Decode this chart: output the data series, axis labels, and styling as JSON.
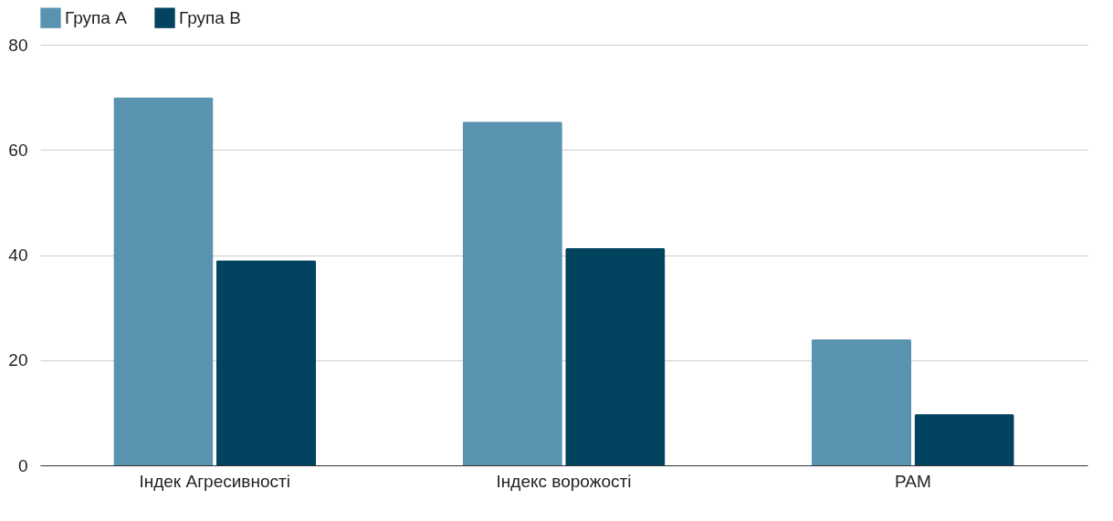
{
  "chart_data": {
    "type": "bar",
    "categories": [
      "Індек Агресивності",
      "Індекс ворожості",
      "PAM"
    ],
    "series": [
      {
        "name": "Група А",
        "color": "#5a93b0",
        "values": [
          70,
          65.4,
          24
        ]
      },
      {
        "name": "Група В",
        "color": "#02445f",
        "values": [
          39,
          41.3,
          9.7
        ]
      }
    ],
    "ylim": [
      0,
      80
    ],
    "yticks": [
      0,
      20,
      40,
      60,
      80
    ],
    "grid": "y",
    "legend": "top"
  }
}
